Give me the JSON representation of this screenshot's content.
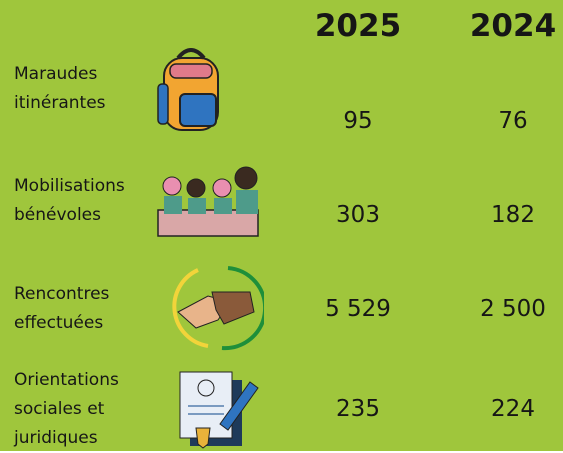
{
  "header": {
    "years": [
      "2025",
      "2024"
    ]
  },
  "rows": [
    {
      "label": [
        "Maraudes",
        "itinérantes"
      ],
      "values": [
        "95",
        "76"
      ]
    },
    {
      "label": [
        "Mobilisations",
        "bénévoles"
      ],
      "values": [
        "303",
        "182"
      ]
    },
    {
      "label": [
        "Rencontres",
        "effectuées"
      ],
      "values": [
        "5 529",
        "2 500"
      ]
    },
    {
      "label": [
        "Orientations",
        "sociales et",
        "juridiques"
      ],
      "values": [
        "235",
        "224"
      ]
    }
  ]
}
